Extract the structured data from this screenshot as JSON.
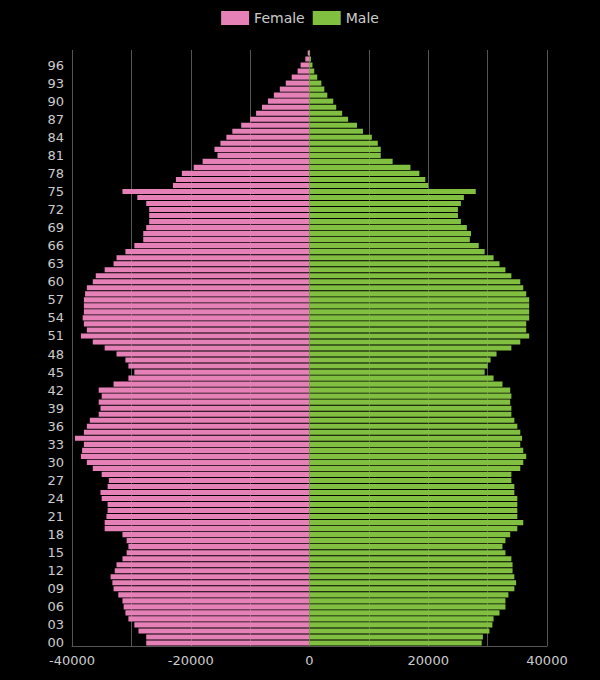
{
  "chart_data": {
    "type": "bar",
    "orientation": "horizontal",
    "grid": true,
    "legend": "top",
    "categories": [
      "00",
      null,
      null,
      "03",
      null,
      null,
      "06",
      null,
      null,
      "09",
      null,
      null,
      "12",
      null,
      null,
      "15",
      null,
      null,
      "18",
      null,
      null,
      "21",
      null,
      null,
      "24",
      null,
      null,
      "27",
      null,
      null,
      "30",
      null,
      null,
      "33",
      null,
      null,
      "36",
      null,
      null,
      "39",
      null,
      null,
      "42",
      null,
      null,
      "45",
      null,
      null,
      "48",
      null,
      null,
      "51",
      null,
      null,
      "54",
      null,
      null,
      "57",
      null,
      null,
      "60",
      null,
      null,
      "63",
      null,
      null,
      "66",
      null,
      null,
      "69",
      null,
      null,
      "72",
      null,
      null,
      "75",
      null,
      null,
      "78",
      null,
      null,
      "81",
      null,
      null,
      "84",
      null,
      null,
      "87",
      null,
      null,
      "90",
      null,
      null,
      "93",
      null,
      null,
      "96",
      null,
      null
    ],
    "series": [
      {
        "name": "Female",
        "color": "#e681b8",
        "values": [
          -27500,
          -27500,
          -28800,
          -29500,
          -30500,
          -31000,
          -31300,
          -31500,
          -32200,
          -33000,
          -33200,
          -33500,
          -32800,
          -32500,
          -31500,
          -30800,
          -30500,
          -30800,
          -31500,
          -34500,
          -34500,
          -34200,
          -34000,
          -34000,
          -35000,
          -35200,
          -34000,
          -33800,
          -35000,
          -36500,
          -37500,
          -38500,
          -38300,
          -38000,
          -39500,
          -38000,
          -37500,
          -37000,
          -35500,
          -35200,
          -35500,
          -35000,
          -35500,
          -33000,
          -30500,
          -29500,
          -30500,
          -31000,
          -32500,
          -34500,
          -36500,
          -38500,
          -37500,
          -38000,
          -38200,
          -38000,
          -38000,
          -38000,
          -37800,
          -37500,
          -36500,
          -36000,
          -34500,
          -33000,
          -32500,
          -31000,
          -29500,
          -28000,
          -28000,
          -27500,
          -27000,
          -27000,
          -27000,
          -27500,
          -29000,
          -31500,
          -23000,
          -22500,
          -21500,
          -19500,
          -18000,
          -15500,
          -16000,
          -15000,
          -14000,
          -13000,
          -11500,
          -10000,
          -9000,
          -8000,
          -7000,
          -6000,
          -5000,
          -4000,
          -3000,
          -2000,
          -1500,
          -700,
          -300
        ]
      },
      {
        "name": "Male",
        "color": "#80bf40",
        "values": [
          29000,
          29200,
          30300,
          30800,
          31000,
          32000,
          33000,
          33000,
          33500,
          34500,
          34800,
          34500,
          34200,
          34200,
          34000,
          33000,
          32500,
          33000,
          33800,
          35000,
          36000,
          35000,
          35000,
          35000,
          35000,
          34500,
          34500,
          34000,
          34000,
          35500,
          36000,
          36500,
          36000,
          35500,
          35800,
          35500,
          35000,
          34500,
          34000,
          34000,
          33800,
          34000,
          33800,
          32500,
          31000,
          29500,
          30000,
          30500,
          31500,
          34000,
          35500,
          37000,
          36500,
          36500,
          37000,
          37000,
          37000,
          37000,
          36500,
          36000,
          35500,
          34000,
          33000,
          32000,
          31000,
          29500,
          28500,
          27000,
          27200,
          26500,
          25500,
          25000,
          25000,
          25500,
          26000,
          28000,
          20000,
          19500,
          18500,
          17000,
          14000,
          12000,
          12000,
          11500,
          10500,
          9000,
          8000,
          6500,
          5500,
          4500,
          4000,
          3000,
          2500,
          2000,
          1300,
          800,
          500,
          250,
          100
        ]
      }
    ],
    "xlim": [
      -40000,
      40000
    ],
    "xticks": [
      -40000,
      -20000,
      0,
      20000,
      40000
    ]
  }
}
